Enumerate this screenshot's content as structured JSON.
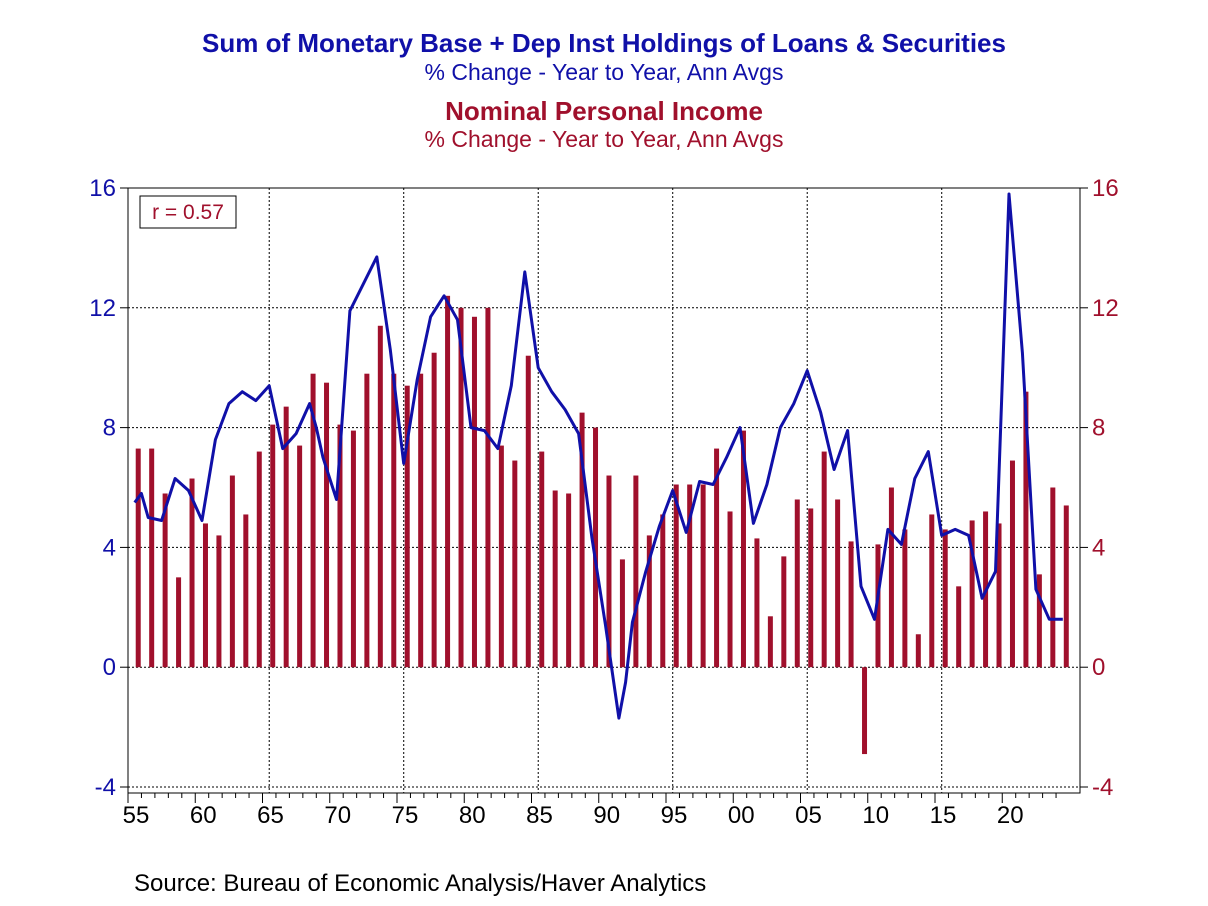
{
  "titles": {
    "series1_title": "Sum of Monetary Base + Dep Inst Holdings of Loans & Securities",
    "series1_subtitle": "% Change - Year to Year, Ann Avgs",
    "series2_title": "Nominal Personal Income",
    "series2_subtitle": "% Change - Year to Year, Ann Avgs"
  },
  "colors": {
    "blue": "#1010a8",
    "red": "#a0102c",
    "axis": "#000000"
  },
  "source": "Source:  Bureau of Economic Analysis/Haver Analytics",
  "chart_data": {
    "type": "bar+line",
    "annotation": "r = 0.57",
    "x_range": [
      1955,
      2024
    ],
    "x_tick_years": [
      1955,
      1960,
      1965,
      1970,
      1975,
      1980,
      1985,
      1990,
      1995,
      2000,
      2005,
      2010,
      2015,
      2020
    ],
    "x_tick_labels": [
      "55",
      "60",
      "65",
      "70",
      "75",
      "80",
      "85",
      "90",
      "95",
      "00",
      "05",
      "10",
      "15",
      "20"
    ],
    "ylim": [
      -4,
      16
    ],
    "y_ticks": [
      -4,
      0,
      4,
      8,
      12,
      16
    ],
    "y_tick_labels": [
      "-4",
      "0",
      "4",
      "8",
      "12",
      "16"
    ],
    "grid": true,
    "bars": {
      "axis": "right",
      "years": [
        1955,
        1956,
        1957,
        1958,
        1959,
        1960,
        1961,
        1962,
        1963,
        1964,
        1965,
        1966,
        1967,
        1968,
        1969,
        1970,
        1971,
        1972,
        1973,
        1974,
        1975,
        1976,
        1977,
        1978,
        1979,
        1980,
        1981,
        1982,
        1983,
        1984,
        1985,
        1986,
        1987,
        1988,
        1989,
        1990,
        1991,
        1992,
        1993,
        1994,
        1995,
        1996,
        1997,
        1998,
        1999,
        2000,
        2001,
        2002,
        2003,
        2004,
        2005,
        2006,
        2007,
        2008,
        2009,
        2010,
        2011,
        2012,
        2013,
        2014,
        2015,
        2016,
        2017,
        2018,
        2019,
        2020,
        2021,
        2022,
        2023,
        2024
      ],
      "values": [
        7.3,
        7.3,
        5.8,
        3.0,
        6.3,
        4.8,
        4.4,
        6.4,
        5.1,
        7.2,
        8.1,
        8.7,
        7.4,
        9.8,
        9.5,
        8.1,
        7.9,
        9.8,
        11.4,
        9.8,
        9.4,
        9.8,
        10.5,
        12.4,
        12.0,
        11.7,
        12.0,
        7.4,
        6.9,
        10.4,
        7.2,
        5.9,
        5.8,
        8.5,
        8.0,
        6.4,
        3.6,
        6.4,
        4.4,
        5.1,
        6.1,
        6.1,
        6.1,
        7.3,
        5.2,
        7.9,
        4.3,
        1.7,
        3.7,
        5.6,
        5.3,
        7.2,
        5.6,
        4.2,
        -2.9,
        4.1,
        6.0,
        4.6,
        1.1,
        5.1,
        4.6,
        2.7,
        4.9,
        5.2,
        4.8,
        6.9,
        9.2,
        3.1,
        6.0,
        5.4
      ]
    },
    "line": {
      "axis": "left",
      "x": [
        1955,
        1955.5,
        1956,
        1957,
        1957.5,
        1958,
        1959,
        1960,
        1961,
        1962,
        1963,
        1964,
        1965,
        1966,
        1967,
        1968,
        1968.5,
        1969,
        1970,
        1971,
        1972,
        1973,
        1974,
        1975,
        1976,
        1977,
        1978,
        1979,
        1980,
        1981,
        1982,
        1983,
        1984,
        1985,
        1986,
        1987,
        1988,
        1989,
        1990,
        1991,
        1991.5,
        1992,
        1993,
        1994,
        1995,
        1996,
        1997,
        1998,
        1999,
        2000,
        2001,
        2002,
        2003,
        2004,
        2005,
        2006,
        2007,
        2008,
        2009,
        2010,
        2011,
        2012,
        2013,
        2014,
        2015,
        2016,
        2017,
        2018,
        2019,
        2020,
        2021,
        2022,
        2023,
        2024
      ],
      "values": [
        5.5,
        5.8,
        5.0,
        4.9,
        5.6,
        6.3,
        5.9,
        4.9,
        7.6,
        8.8,
        9.2,
        8.9,
        9.4,
        7.3,
        7.8,
        8.8,
        8.0,
        7.0,
        5.6,
        11.9,
        12.8,
        13.7,
        10.6,
        6.8,
        9.6,
        11.7,
        12.4,
        11.6,
        8.0,
        7.9,
        7.3,
        9.4,
        13.2,
        10.0,
        9.2,
        8.6,
        7.8,
        4.3,
        1.4,
        -1.7,
        -0.5,
        1.5,
        3.2,
        4.7,
        5.9,
        4.5,
        6.2,
        6.1,
        7.0,
        8.0,
        4.8,
        6.1,
        8.0,
        8.8,
        9.9,
        8.5,
        6.6,
        7.9,
        2.7,
        1.6,
        4.6,
        4.1,
        6.3,
        7.2,
        4.4,
        4.6,
        4.4,
        2.3,
        3.2,
        15.8,
        10.5,
        2.6,
        1.6,
        1.6
      ]
    }
  }
}
